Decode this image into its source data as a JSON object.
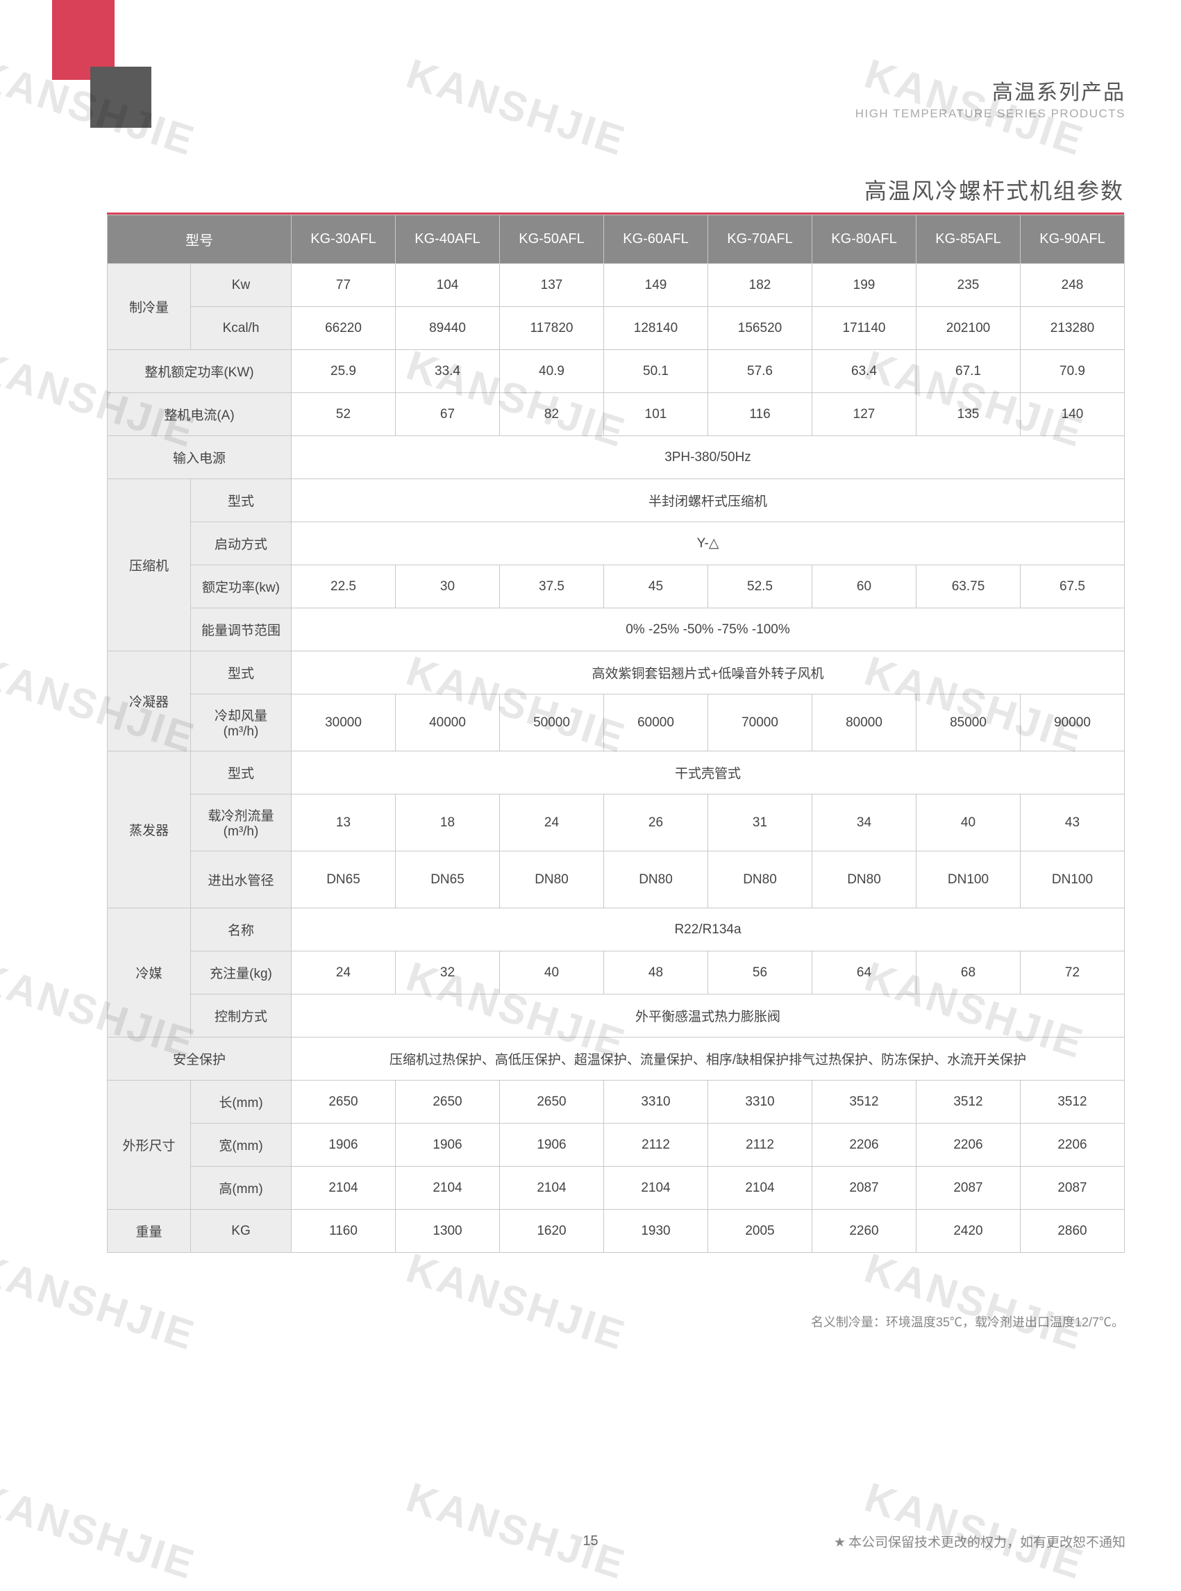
{
  "header": {
    "title_cn": "高温系列产品",
    "title_en": "HIGH TEMPERATURE SERIES PRODUCTS"
  },
  "page_title": "高温风冷螺杆式机组参数",
  "watermark_text": "KANSHJIE",
  "table": {
    "header_label": "型号",
    "models": [
      "KG-30AFL",
      "KG-40AFL",
      "KG-50AFL",
      "KG-60AFL",
      "KG-70AFL",
      "KG-80AFL",
      "KG-85AFL",
      "KG-90AFL"
    ],
    "rows": [
      {
        "group": "制冷量",
        "label": "Kw",
        "vals": [
          "77",
          "104",
          "137",
          "149",
          "182",
          "199",
          "235",
          "248"
        ]
      },
      {
        "group": "",
        "label": "Kcal/h",
        "vals": [
          "66220",
          "89440",
          "117820",
          "128140",
          "156520",
          "171140",
          "202100",
          "213280"
        ]
      },
      {
        "group": "整机额定功率(KW)",
        "label": "",
        "vals": [
          "25.9",
          "33.4",
          "40.9",
          "50.1",
          "57.6",
          "63.4",
          "67.1",
          "70.9"
        ]
      },
      {
        "group": "整机电流(A)",
        "label": "",
        "vals": [
          "52",
          "67",
          "82",
          "101",
          "116",
          "127",
          "135",
          "140"
        ]
      },
      {
        "group": "输入电源",
        "label": "",
        "span": "3PH-380/50Hz"
      },
      {
        "group": "压缩机",
        "label": "型式",
        "span": "半封闭螺杆式压缩机"
      },
      {
        "group": "",
        "label": "启动方式",
        "span": "Y-△"
      },
      {
        "group": "",
        "label": "额定功率(kw)",
        "vals": [
          "22.5",
          "30",
          "37.5",
          "45",
          "52.5",
          "60",
          "63.75",
          "67.5"
        ]
      },
      {
        "group": "",
        "label": "能量调节范围",
        "span": "0% -25% -50% -75% -100%"
      },
      {
        "group": "冷凝器",
        "label": "型式",
        "span": "高效紫铜套铝翘片式+低噪音外转子风机"
      },
      {
        "group": "",
        "label": "冷却风量(m³/h)",
        "vals": [
          "30000",
          "40000",
          "50000",
          "60000",
          "70000",
          "80000",
          "85000",
          "90000"
        ]
      },
      {
        "group": "蒸发器",
        "label": "型式",
        "span": "干式壳管式"
      },
      {
        "group": "",
        "label": "载冷剂流量(m³/h)",
        "vals": [
          "13",
          "18",
          "24",
          "26",
          "31",
          "34",
          "40",
          "43"
        ]
      },
      {
        "group": "",
        "label": "进出水管径",
        "vals": [
          "DN65",
          "DN65",
          "DN80",
          "DN80",
          "DN80",
          "DN80",
          "DN100",
          "DN100"
        ]
      },
      {
        "group": "冷媒",
        "label": "名称",
        "span": "R22/R134a"
      },
      {
        "group": "",
        "label": "充注量(kg)",
        "vals": [
          "24",
          "32",
          "40",
          "48",
          "56",
          "64",
          "68",
          "72"
        ]
      },
      {
        "group": "",
        "label": "控制方式",
        "span": "外平衡感温式热力膨胀阀"
      },
      {
        "group": "安全保护",
        "label": "",
        "span": "压缩机过热保护、高低压保护、超温保护、流量保护、相序/缺相保护排气过热保护、防冻保护、水流开关保护"
      },
      {
        "group": "外形尺寸",
        "label": "长(mm)",
        "vals": [
          "2650",
          "2650",
          "2650",
          "3310",
          "3310",
          "3512",
          "3512",
          "3512"
        ]
      },
      {
        "group": "",
        "label": "宽(mm)",
        "vals": [
          "1906",
          "1906",
          "1906",
          "2112",
          "2112",
          "2206",
          "2206",
          "2206"
        ]
      },
      {
        "group": "",
        "label": "高(mm)",
        "vals": [
          "2104",
          "2104",
          "2104",
          "2104",
          "2104",
          "2087",
          "2087",
          "2087"
        ]
      },
      {
        "group": "重量",
        "label": "KG",
        "vals": [
          "1160",
          "1300",
          "1620",
          "1930",
          "2005",
          "2260",
          "2420",
          "2860"
        ]
      }
    ]
  },
  "footnote": "名义制冷量：环境温度35℃，载冷剂进出口温度12/7℃。",
  "page_number": "15",
  "disclaimer": "本公司保留技术更改的权力，如有更改恕不通知",
  "colors": {
    "accent": "#d84157",
    "header_bg": "#8a8a8a",
    "grey_cell": "#ededed",
    "border": "#c8c8c8",
    "text": "#444444",
    "muted": "#888888"
  }
}
